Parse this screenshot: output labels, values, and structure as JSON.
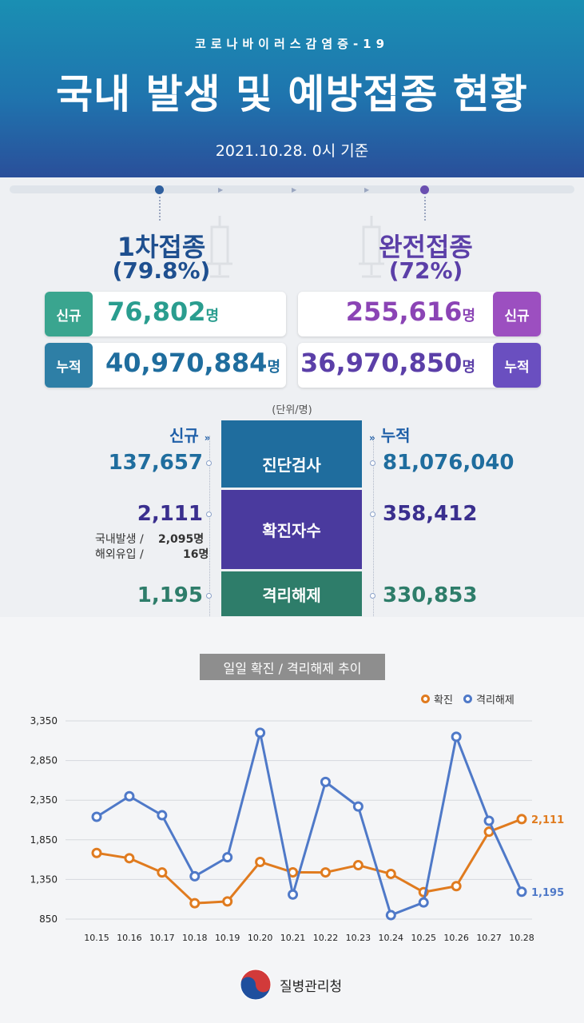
{
  "header": {
    "subtitle": "코로나바이러스감염증-19",
    "title": "국내 발생 및 예방접종 현황",
    "date": "2021.10.28. 0시 기준"
  },
  "vaccine": {
    "first": {
      "title": "1차접종",
      "pct": "(79.8%)",
      "new_label": "신규",
      "new_value": "76,802",
      "total_label": "누적",
      "total_value": "40,970,884",
      "unit": "명",
      "color": "#2a9d8f"
    },
    "full": {
      "title": "완전접종",
      "pct": "(72%)",
      "new_label": "신규",
      "new_value": "255,616",
      "total_label": "누적",
      "total_value": "36,970,850",
      "unit": "명",
      "color": "#7b4fb8"
    }
  },
  "stats": {
    "unit_note": "(단위/명)",
    "new_header": "신규",
    "total_header": "누적",
    "rows": [
      {
        "label": "진단검사",
        "new": "137,657",
        "total": "81,076,040",
        "color": "#1f6d9e"
      },
      {
        "label": "확진자수",
        "new": "2,111",
        "total": "358,412",
        "color": "#4a3a9e",
        "detail": [
          {
            "label": "국내발생 /",
            "value": "2,095명"
          },
          {
            "label": "해외유입 /",
            "value": "16명"
          }
        ]
      },
      {
        "label": "격리해제",
        "new": "1,195",
        "total": "330,853",
        "color": "#2e7d6a"
      }
    ]
  },
  "chart_data": {
    "type": "line",
    "title": "일일 확진 / 격리해제 추이",
    "categories": [
      "10.15",
      "10.16",
      "10.17",
      "10.18",
      "10.19",
      "10.20",
      "10.21",
      "10.22",
      "10.23",
      "10.24",
      "10.25",
      "10.26",
      "10.27",
      "10.28"
    ],
    "series": [
      {
        "name": "확진",
        "color": "#e07b1f",
        "values": [
          1684,
          1618,
          1438,
          1050,
          1073,
          1571,
          1440,
          1439,
          1530,
          1420,
          1190,
          1266,
          1952,
          2111
        ]
      },
      {
        "name": "격리해제",
        "color": "#4f79c8",
        "values": [
          2140,
          2400,
          2160,
          1390,
          1630,
          3200,
          1160,
          2580,
          2270,
          900,
          1060,
          3150,
          2090,
          1195
        ]
      }
    ],
    "yticks": [
      "3,350",
      "2,850",
      "2,350",
      "1,850",
      "1,350",
      "850"
    ],
    "ylim": [
      850,
      3350
    ],
    "end_labels": {
      "confirmed": "2,111",
      "released": "1,195"
    },
    "grid": true,
    "legend": "top-right"
  },
  "footer": {
    "org": "질병관리청"
  }
}
